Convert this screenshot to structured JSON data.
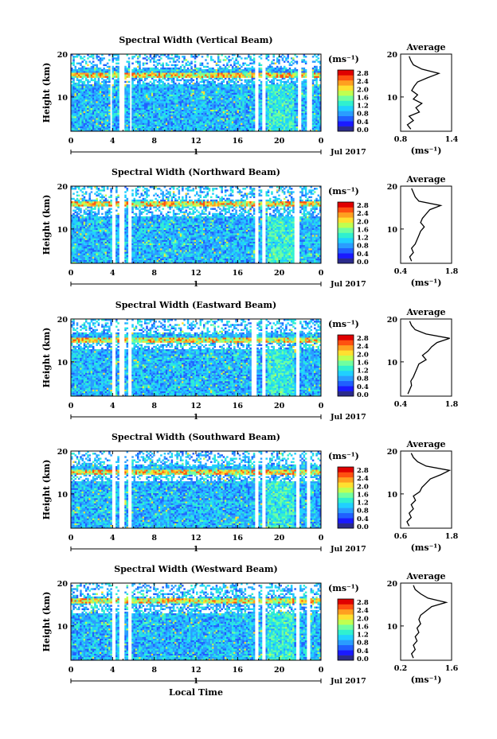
{
  "colormap": [
    "#2b2b8c",
    "#1a1aff",
    "#2060ff",
    "#2a9dff",
    "#20d0ff",
    "#30f0d0",
    "#70ffa0",
    "#c0ff50",
    "#ffe030",
    "#ffa020",
    "#ff5010",
    "#e00000"
  ],
  "charts": [
    {
      "chart_data": {
        "type": "heatmap",
        "title": "Spectral Width (Vertical Beam)",
        "ylabel": "Height (km)",
        "x_ticks": [
          "0",
          "4",
          "8",
          "12",
          "16",
          "20",
          "0"
        ],
        "y_ticks": [
          "20",
          "10"
        ],
        "xlim": [
          0,
          24
        ],
        "ylim": [
          2,
          20
        ],
        "date_axis": {
          "day_label": "1",
          "month_label": "Jul 2017"
        },
        "colorbar": {
          "unit": "(ms⁻¹)",
          "ticks": [
            "2.8",
            "2.4",
            "2.0",
            "1.6",
            "1.2",
            "0.8",
            "0.4",
            "0.0"
          ]
        },
        "gaps_hours": [
          [
            3.7,
            4.0
          ],
          [
            4.6,
            5.1
          ],
          [
            5.6,
            5.9
          ],
          [
            17.6,
            18.0
          ],
          [
            18.4,
            18.7
          ],
          [
            21.8,
            22.1
          ],
          [
            22.7,
            23.1
          ]
        ],
        "bright_layer_km": 15,
        "profile": {
          "title": "Average",
          "xlabel": "(ms⁻¹)",
          "x_ticks": [
            "0.8",
            "1.4"
          ],
          "xlim": [
            0.8,
            1.4
          ],
          "y_ticks": [
            "20",
            "10"
          ],
          "ylim": [
            2,
            20
          ],
          "heights": [
            2.5,
            3.5,
            4.5,
            5.5,
            6.5,
            7.5,
            8.5,
            9.5,
            10.5,
            11.5,
            12.5,
            13.5,
            14.5,
            15.5,
            16.5,
            17.5,
            18.5,
            19.5
          ],
          "values": [
            0.92,
            0.88,
            0.95,
            0.9,
            1.02,
            0.98,
            1.05,
            0.95,
            1.0,
            0.93,
            0.96,
            1.0,
            1.12,
            1.25,
            1.05,
            0.95,
            0.92,
            0.9
          ]
        }
      }
    },
    {
      "chart_data": {
        "type": "heatmap",
        "title": "Spectral Width (Northward Beam)",
        "ylabel": "Height (km)",
        "x_ticks": [
          "0",
          "4",
          "8",
          "12",
          "16",
          "20",
          "0"
        ],
        "y_ticks": [
          "20",
          "10"
        ],
        "xlim": [
          0,
          24
        ],
        "ylim": [
          2,
          20
        ],
        "date_axis": {
          "day_label": "1",
          "month_label": "Jul 2017"
        },
        "colorbar": {
          "unit": "(ms⁻¹)",
          "ticks": [
            "2.8",
            "2.4",
            "2.0",
            "1.6",
            "1.2",
            "0.8",
            "0.4",
            "0.0"
          ]
        },
        "gaps_hours": [
          [
            3.9,
            4.2
          ],
          [
            4.6,
            5.1
          ],
          [
            5.5,
            5.8
          ],
          [
            17.6,
            18.0
          ],
          [
            18.4,
            18.7
          ],
          [
            21.5,
            21.9
          ]
        ],
        "bright_layer_km": 16,
        "profile": {
          "title": "Average",
          "xlabel": "(ms⁻¹)",
          "x_ticks": [
            "0.4",
            "1.8"
          ],
          "xlim": [
            0.4,
            1.8
          ],
          "y_ticks": [
            "20",
            "10"
          ],
          "ylim": [
            2,
            20
          ],
          "heights": [
            2.5,
            3.5,
            4.5,
            5.5,
            6.5,
            7.5,
            8.5,
            9.5,
            10.5,
            11.5,
            12.5,
            13.5,
            14.5,
            15.5,
            16.5,
            17.5,
            18.5,
            19.5
          ],
          "values": [
            0.7,
            0.65,
            0.75,
            0.7,
            0.8,
            0.85,
            0.9,
            0.95,
            1.05,
            0.95,
            1.0,
            1.1,
            1.2,
            1.5,
            0.9,
            0.8,
            0.75,
            0.7
          ]
        }
      }
    },
    {
      "chart_data": {
        "type": "heatmap",
        "title": "Spectral Width (Eastward Beam)",
        "ylabel": "Height (km)",
        "x_ticks": [
          "0",
          "4",
          "8",
          "12",
          "16",
          "20",
          "0"
        ],
        "y_ticks": [
          "20",
          "10"
        ],
        "xlim": [
          0,
          24
        ],
        "ylim": [
          2,
          20
        ],
        "date_axis": {
          "day_label": "1",
          "month_label": "Jul 2017"
        },
        "colorbar": {
          "unit": "(ms⁻¹)",
          "ticks": [
            "2.8",
            "2.4",
            "2.0",
            "1.6",
            "1.2",
            "0.8",
            "0.4",
            "0.0"
          ]
        },
        "gaps_hours": [
          [
            3.9,
            4.2
          ],
          [
            4.7,
            5.1
          ],
          [
            5.5,
            5.8
          ],
          [
            17.4,
            17.8
          ],
          [
            18.3,
            18.6
          ],
          [
            21.6,
            22.0
          ]
        ],
        "bright_layer_km": 15,
        "profile": {
          "title": "Average",
          "xlabel": "",
          "x_ticks": [
            "0.4",
            "1.8"
          ],
          "xlim": [
            0.4,
            1.8
          ],
          "y_ticks": [
            "20",
            "10"
          ],
          "ylim": [
            2,
            20
          ],
          "heights": [
            2.5,
            3.5,
            4.5,
            5.5,
            6.5,
            7.5,
            8.5,
            9.5,
            10.5,
            11.5,
            12.5,
            13.5,
            14.5,
            15.5,
            16.5,
            17.5,
            18.5,
            19.5
          ],
          "values": [
            0.6,
            0.65,
            0.7,
            0.68,
            0.75,
            0.8,
            0.85,
            0.9,
            1.1,
            1.0,
            1.15,
            1.25,
            1.4,
            1.75,
            1.1,
            0.8,
            0.7,
            0.65
          ]
        }
      }
    },
    {
      "chart_data": {
        "type": "heatmap",
        "title": "Spectral Width (Southward Beam)",
        "ylabel": "Height (km)",
        "x_ticks": [
          "0",
          "4",
          "8",
          "12",
          "16",
          "20",
          "0"
        ],
        "y_ticks": [
          "20",
          "10"
        ],
        "xlim": [
          0,
          24
        ],
        "ylim": [
          2,
          20
        ],
        "date_axis": {
          "day_label": "1",
          "month_label": "Jul 2017"
        },
        "colorbar": {
          "unit": "(ms⁻¹)",
          "ticks": [
            "2.8",
            "2.4",
            "2.0",
            "1.6",
            "1.2",
            "0.8",
            "0.4",
            "0.0"
          ]
        },
        "gaps_hours": [
          [
            3.9,
            4.2
          ],
          [
            4.7,
            5.1
          ],
          [
            5.5,
            5.8
          ],
          [
            17.6,
            18.0
          ],
          [
            18.4,
            18.7
          ],
          [
            21.6,
            22.0
          ],
          [
            22.6,
            23.0
          ]
        ],
        "bright_layer_km": 15,
        "profile": {
          "title": "Average",
          "xlabel": "(ms⁻¹)",
          "x_ticks": [
            "0.6",
            "1.8"
          ],
          "xlim": [
            0.6,
            1.8
          ],
          "y_ticks": [
            "20",
            "10"
          ],
          "ylim": [
            2,
            20
          ],
          "heights": [
            2.5,
            3.5,
            4.5,
            5.5,
            6.5,
            7.5,
            8.5,
            9.5,
            10.5,
            11.5,
            12.5,
            13.5,
            14.5,
            15.5,
            16.5,
            17.5,
            18.5,
            19.5
          ],
          "values": [
            0.8,
            0.75,
            0.85,
            0.8,
            0.9,
            0.85,
            0.95,
            0.9,
            1.05,
            1.1,
            1.2,
            1.3,
            1.55,
            1.75,
            1.2,
            1.0,
            0.9,
            0.85
          ]
        }
      }
    },
    {
      "chart_data": {
        "type": "heatmap",
        "title": "Spectral Width (Westward Beam)",
        "ylabel": "Height (km)",
        "xlabel": "Local Time",
        "x_ticks": [
          "0",
          "4",
          "8",
          "12",
          "16",
          "20",
          "0"
        ],
        "y_ticks": [
          "20",
          "10"
        ],
        "xlim": [
          0,
          24
        ],
        "ylim": [
          2,
          20
        ],
        "date_axis": {
          "day_label": "1",
          "month_label": "Jul 2017"
        },
        "colorbar": {
          "unit": "(ms⁻¹)",
          "ticks": [
            "2.8",
            "2.4",
            "2.0",
            "1.6",
            "1.2",
            "0.8",
            "0.4",
            "0.0"
          ]
        },
        "gaps_hours": [
          [
            3.9,
            4.2
          ],
          [
            4.7,
            5.1
          ],
          [
            5.5,
            5.8
          ],
          [
            17.6,
            18.0
          ],
          [
            18.4,
            18.7
          ],
          [
            21.6,
            22.0
          ],
          [
            22.6,
            23.0
          ]
        ],
        "bright_layer_km": 16,
        "profile": {
          "title": "Average",
          "xlabel": "(ms⁻¹)",
          "x_ticks": [
            "0.2",
            "1.6"
          ],
          "xlim": [
            0.2,
            1.6
          ],
          "y_ticks": [
            "20",
            "10"
          ],
          "ylim": [
            2,
            20
          ],
          "heights": [
            2.5,
            3.5,
            4.5,
            5.5,
            6.5,
            7.5,
            8.5,
            9.5,
            10.5,
            11.5,
            12.5,
            13.5,
            14.5,
            15.5,
            16.5,
            17.5,
            18.5,
            19.5
          ],
          "values": [
            0.55,
            0.5,
            0.6,
            0.55,
            0.65,
            0.6,
            0.7,
            0.65,
            0.75,
            0.7,
            0.75,
            0.9,
            1.05,
            1.45,
            0.95,
            0.75,
            0.6,
            0.55
          ]
        }
      }
    }
  ]
}
